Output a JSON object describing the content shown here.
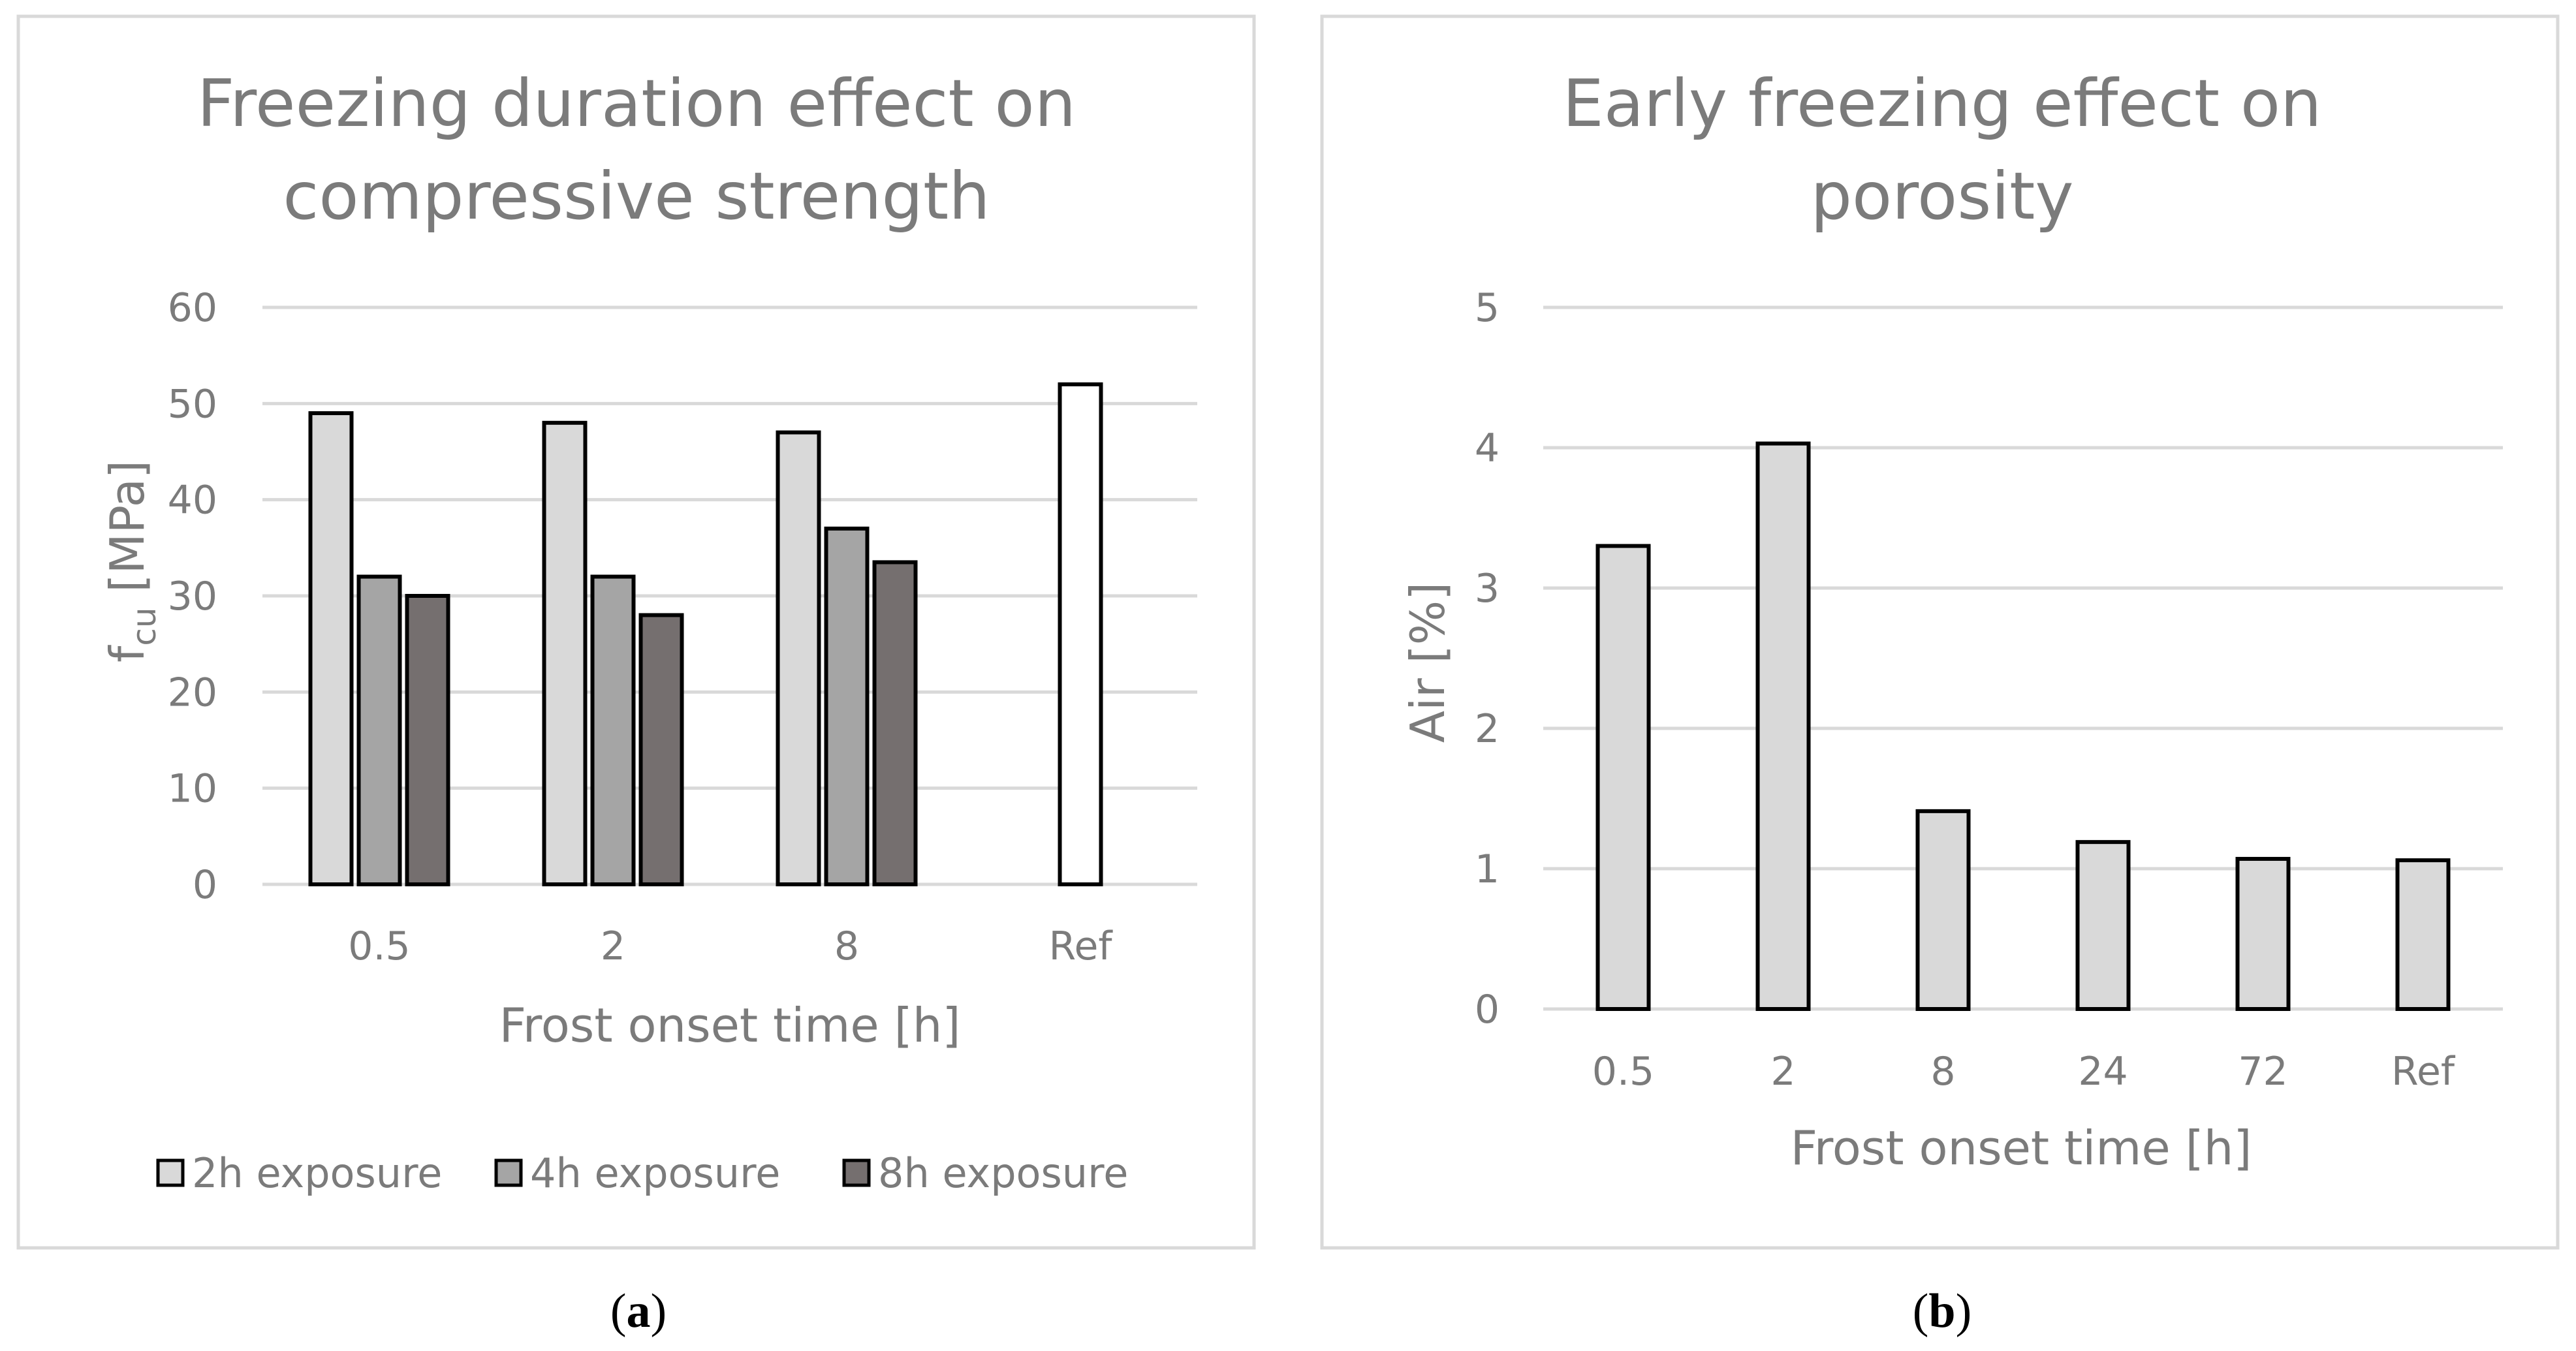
{
  "chart_data": [
    {
      "type": "bar",
      "title": [
        "Freezing duration effect on",
        "compressive strength"
      ],
      "xlabel": "Frost onset time [h]",
      "ylabel": {
        "base": "f",
        "subscript": "cu",
        "suffix": " [MPa]"
      },
      "ylim": [
        0,
        60
      ],
      "yticks": [
        "0",
        "10",
        "20",
        "30",
        "40",
        "50",
        "60"
      ],
      "categories": [
        "0.5",
        "2",
        "8",
        "Ref"
      ],
      "series": [
        {
          "name": "2h exposure",
          "color": "#d9d9d9",
          "values": [
            49,
            48,
            47,
            null
          ]
        },
        {
          "name": "4h exposure",
          "color": "#a5a5a5",
          "values": [
            32,
            32,
            37,
            null
          ]
        },
        {
          "name": "8h exposure",
          "color": "#756f6f",
          "values": [
            30,
            28,
            33.5,
            null
          ]
        }
      ],
      "reference": {
        "category": "Ref",
        "value": 52,
        "color": "#ffffff"
      },
      "grid": true,
      "legend": "bottom",
      "panel_label": "a"
    },
    {
      "type": "bar",
      "title": [
        "Early freezing effect on",
        "porosity"
      ],
      "xlabel": "Frost onset time [h]",
      "ylabel": "Air [%]",
      "ylim": [
        0,
        5
      ],
      "yticks": [
        "0",
        "1",
        "2",
        "3",
        "4",
        "5"
      ],
      "categories": [
        "0.5",
        "2",
        "8",
        "24",
        "72",
        "Ref"
      ],
      "series": [
        {
          "name": "Air",
          "color": "#d9d9d9",
          "values": [
            3.3,
            4.03,
            1.41,
            1.19,
            1.07,
            1.06
          ]
        }
      ],
      "grid": true,
      "legend": "none",
      "panel_label": "b"
    }
  ]
}
